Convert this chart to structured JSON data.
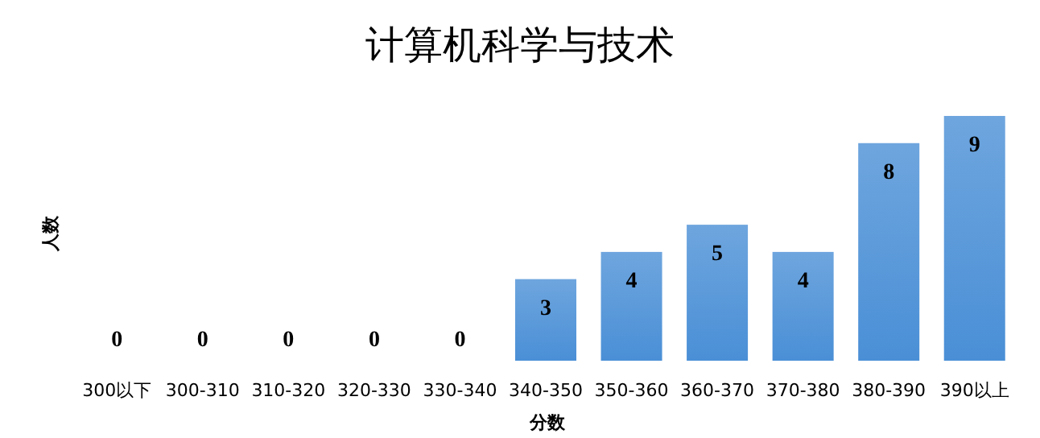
{
  "chart_data": {
    "type": "bar",
    "title": "计算机科学与技术",
    "xlabel": "分数",
    "ylabel": "人数",
    "categories": [
      "300以下",
      "300-310",
      "310-320",
      "320-330",
      "330-340",
      "340-350",
      "350-360",
      "360-370",
      "370-380",
      "380-390",
      "390以上"
    ],
    "values": [
      0,
      0,
      0,
      0,
      0,
      3,
      4,
      5,
      4,
      8,
      9
    ],
    "color": "#4a8fd6",
    "data_labels": true
  }
}
